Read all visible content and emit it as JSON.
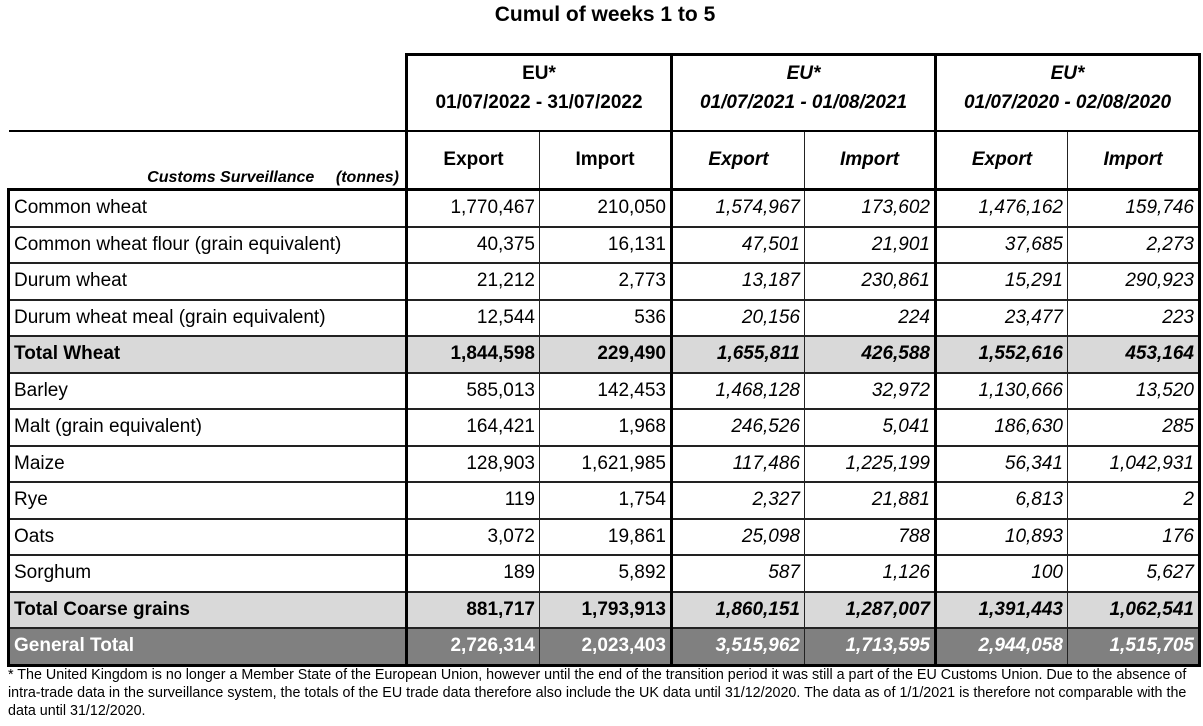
{
  "title": "Cumul of weeks 1 to 5",
  "header": {
    "row_label": "Customs Surveillance",
    "unit": "(tonnes)",
    "periods": [
      {
        "region": "EU*",
        "range": "01/07/2022 - 31/07/2022",
        "italic": false
      },
      {
        "region": "EU*",
        "range": "01/07/2021 - 01/08/2021",
        "italic": true
      },
      {
        "region": "EU*",
        "range": "01/07/2020 - 02/08/2020",
        "italic": true
      }
    ],
    "subcolumns": [
      "Export",
      "Import"
    ]
  },
  "rows": [
    {
      "label": "Common wheat",
      "type": "item",
      "values": [
        "1,770,467",
        "210,050",
        "1,574,967",
        "173,602",
        "1,476,162",
        "159,746"
      ]
    },
    {
      "label": "Common wheat flour (grain equivalent)",
      "type": "item",
      "values": [
        "40,375",
        "16,131",
        "47,501",
        "21,901",
        "37,685",
        "2,273"
      ]
    },
    {
      "label": "Durum wheat",
      "type": "item",
      "values": [
        "21,212",
        "2,773",
        "13,187",
        "230,861",
        "15,291",
        "290,923"
      ]
    },
    {
      "label": "Durum wheat meal (grain equivalent)",
      "type": "item",
      "values": [
        "12,544",
        "536",
        "20,156",
        "224",
        "23,477",
        "223"
      ]
    },
    {
      "label": "Total Wheat",
      "type": "subtotal",
      "values": [
        "1,844,598",
        "229,490",
        "1,655,811",
        "426,588",
        "1,552,616",
        "453,164"
      ]
    },
    {
      "label": "Barley",
      "type": "item",
      "values": [
        "585,013",
        "142,453",
        "1,468,128",
        "32,972",
        "1,130,666",
        "13,520"
      ]
    },
    {
      "label": "Malt (grain equivalent)",
      "type": "item",
      "values": [
        "164,421",
        "1,968",
        "246,526",
        "5,041",
        "186,630",
        "285"
      ]
    },
    {
      "label": "Maize",
      "type": "item",
      "values": [
        "128,903",
        "1,621,985",
        "117,486",
        "1,225,199",
        "56,341",
        "1,042,931"
      ]
    },
    {
      "label": "Rye",
      "type": "item",
      "values": [
        "119",
        "1,754",
        "2,327",
        "21,881",
        "6,813",
        "2"
      ]
    },
    {
      "label": "Oats",
      "type": "item",
      "values": [
        "3,072",
        "19,861",
        "25,098",
        "788",
        "10,893",
        "176"
      ]
    },
    {
      "label": "Sorghum",
      "type": "item",
      "values": [
        "189",
        "5,892",
        "587",
        "1,126",
        "100",
        "5,627"
      ]
    },
    {
      "label": "Total Coarse grains",
      "type": "subtotal",
      "values": [
        "881,717",
        "1,793,913",
        "1,860,151",
        "1,287,007",
        "1,391,443",
        "1,062,541"
      ]
    },
    {
      "label": "General Total",
      "type": "grand",
      "values": [
        "2,726,314",
        "2,023,403",
        "3,515,962",
        "1,713,595",
        "2,944,058",
        "1,515,705"
      ]
    }
  ],
  "colors": {
    "subtotal_bg": "#d9d9d9",
    "grand_bg": "#808080",
    "grand_text": "#ffffff"
  },
  "footnote": "* The United Kingdom is no longer a Member State of the European Union, however until the end of the transition period it was still a part of the EU Customs Union. Due to the absence of intra-trade data in the surveillance system, the totals of the EU trade data  therefore also include the UK data until 31/12/2020. The data as of 1/1/2021 is therefore not comparable with the data until 31/12/2020."
}
